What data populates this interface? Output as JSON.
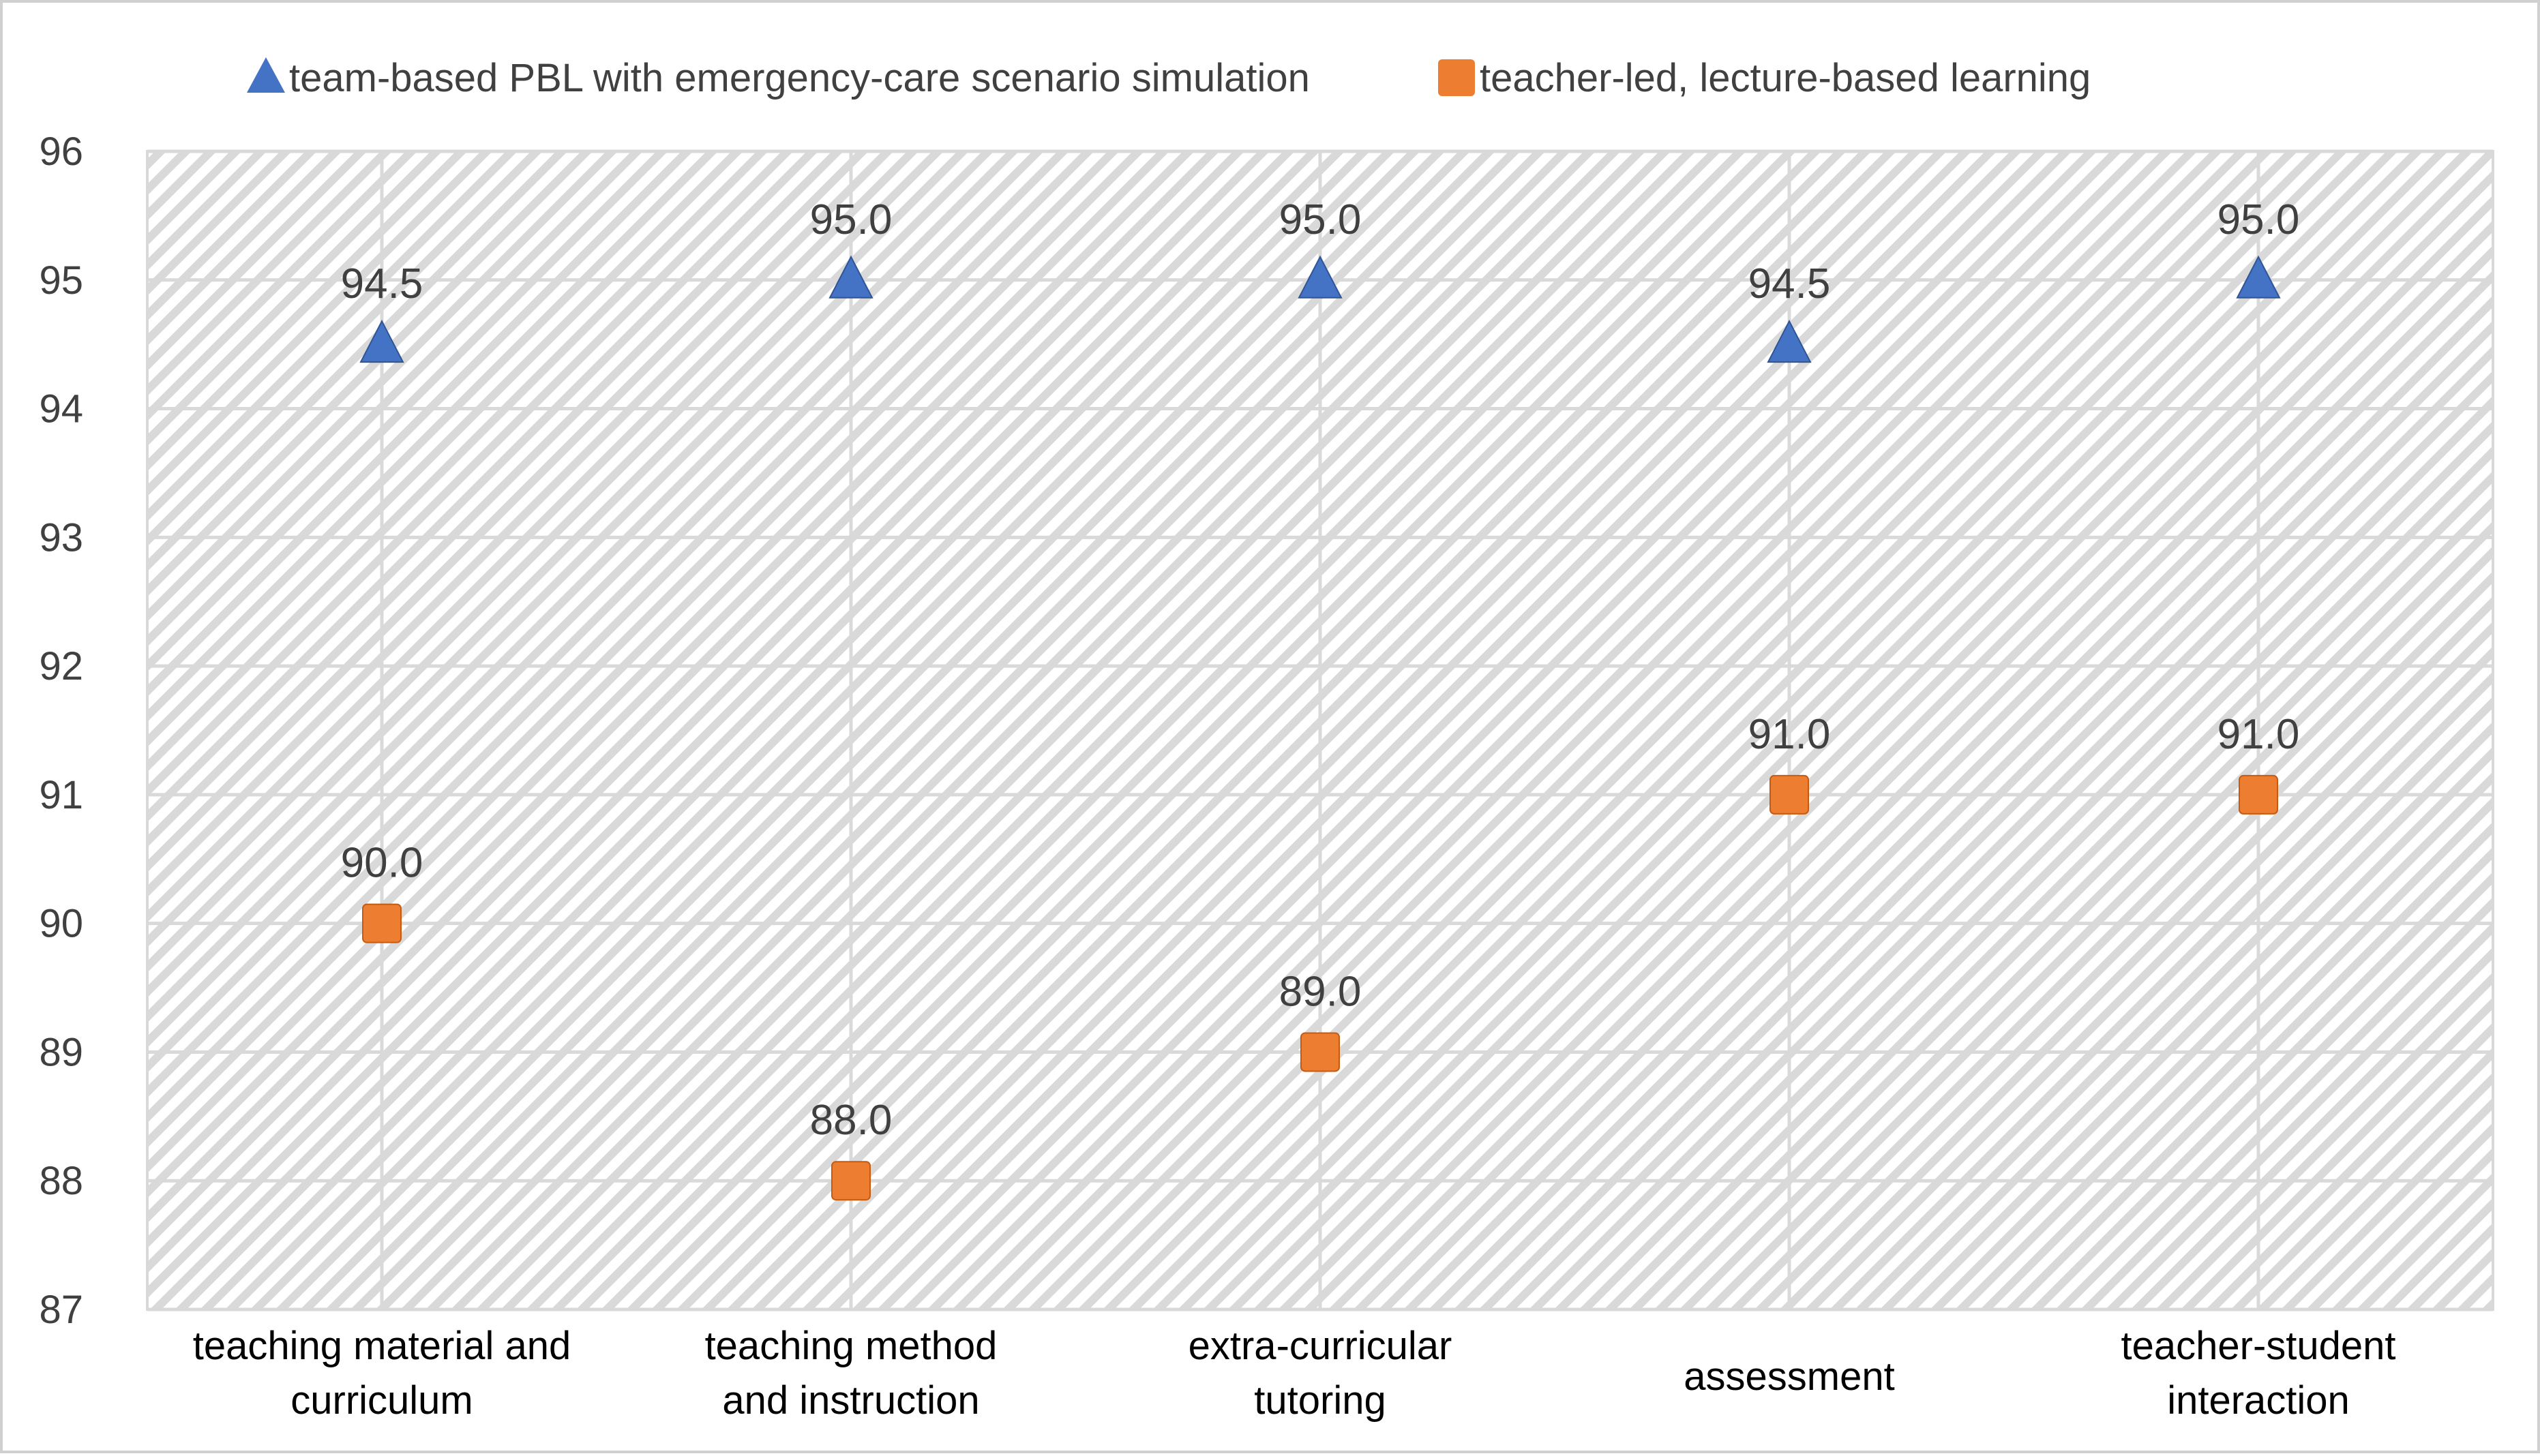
{
  "chart_data": {
    "type": "scatter",
    "title": "",
    "xlabel": "",
    "ylabel": "",
    "categories": [
      [
        "teaching material and",
        "curriculum"
      ],
      [
        "teaching method",
        "and instruction"
      ],
      [
        "extra-curricular",
        "tutoring"
      ],
      [
        "assessment"
      ],
      [
        "teacher-student",
        "interaction"
      ]
    ],
    "ylim": [
      87,
      96
    ],
    "yticks": [
      96,
      95,
      94,
      93,
      92,
      91,
      90,
      89,
      88,
      87
    ],
    "grid": true,
    "legend_position": "top",
    "series": [
      {
        "name": "team-based PBL with emergency-care scenario simulation",
        "marker": "triangle",
        "color": "#4472C4",
        "values": [
          94.5,
          95.0,
          95.0,
          94.5,
          95.0
        ],
        "labels": [
          "94.5",
          "95.0",
          "95.0",
          "94.5",
          "95.0"
        ]
      },
      {
        "name": "teacher-led, lecture-based learning",
        "marker": "square",
        "color": "#ED7D31",
        "values": [
          90.0,
          88.0,
          89.0,
          91.0,
          91.0
        ],
        "labels": [
          "90.0",
          "88.0",
          "89.0",
          "91.0",
          "91.0"
        ]
      }
    ]
  }
}
